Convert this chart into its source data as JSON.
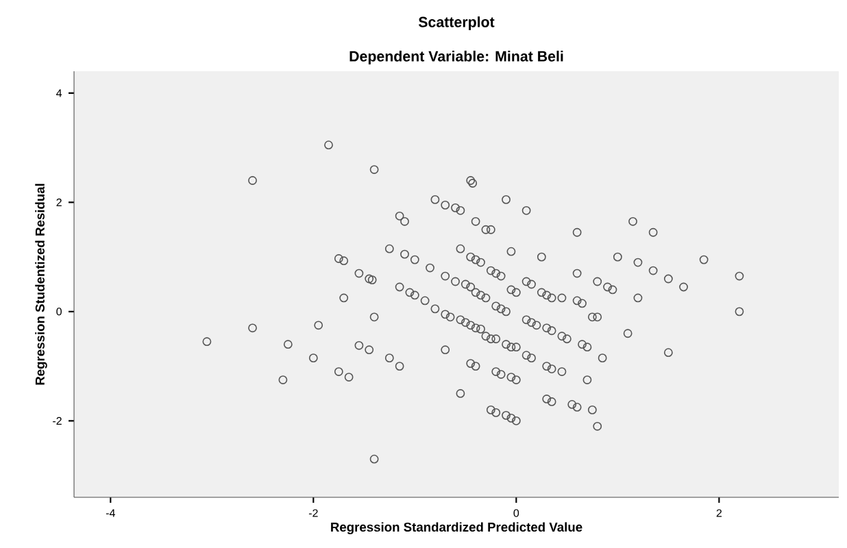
{
  "chart_data": {
    "type": "scatter",
    "title": "Scatterplot",
    "subtitle": "Dependent Variable: Minat Beli",
    "xlabel": "Regression Standardized Predicted Value",
    "ylabel": "Regression Studentized Residual",
    "xlim": [
      -4.36,
      3.18
    ],
    "ylim": [
      -3.4,
      4.4
    ],
    "xticks": [
      -4,
      -2,
      0,
      2
    ],
    "yticks": [
      4,
      2,
      0,
      -2
    ],
    "grid": false,
    "marker": "circle",
    "series": [
      {
        "color": "#555555",
        "x": [
          -3.05,
          -2.6,
          -2.6,
          -2.25,
          -2.3,
          -1.95,
          -2.0,
          -1.85,
          -1.75,
          -1.7,
          -1.75,
          -1.65,
          -1.7,
          -1.55,
          -1.45,
          -1.42,
          -1.55,
          -1.45,
          -1.4,
          -1.4,
          -1.4,
          -1.25,
          -1.25,
          -1.15,
          -1.1,
          -1.15,
          -1.1,
          -1.0,
          -1.05,
          -1.0,
          -1.15,
          -0.9,
          -0.8,
          -0.7,
          -0.85,
          -0.7,
          -0.8,
          -0.7,
          -0.65,
          -0.7,
          -0.6,
          -0.55,
          -0.55,
          -0.6,
          -0.5,
          -0.45,
          -0.55,
          -0.5,
          -0.45,
          -0.4,
          -0.35,
          -0.55,
          -0.45,
          -0.43,
          -0.4,
          -0.45,
          -0.4,
          -0.35,
          -0.4,
          -0.35,
          -0.3,
          -0.45,
          -0.4,
          -0.3,
          -0.25,
          -0.25,
          -0.2,
          -0.15,
          -0.2,
          -0.15,
          -0.1,
          -0.3,
          -0.25,
          -0.2,
          -0.2,
          -0.15,
          -0.25,
          -0.2,
          -0.1,
          -0.05,
          -0.05,
          0.0,
          -0.1,
          -0.05,
          0.0,
          -0.05,
          0.0,
          -0.1,
          -0.05,
          0.0,
          0.1,
          0.1,
          0.15,
          0.1,
          0.15,
          0.2,
          0.1,
          0.15,
          0.25,
          0.25,
          0.3,
          0.35,
          0.3,
          0.35,
          0.3,
          0.35,
          0.3,
          0.35,
          0.45,
          0.45,
          0.5,
          0.45,
          0.55,
          0.6,
          0.6,
          0.6,
          0.6,
          0.65,
          0.65,
          0.7,
          0.7,
          0.75,
          0.8,
          0.75,
          0.8,
          0.8,
          0.85,
          0.9,
          0.95,
          1.0,
          1.1,
          1.15,
          1.2,
          1.2,
          1.35,
          1.35,
          1.5,
          1.5,
          1.65,
          1.85,
          2.2,
          2.2
        ],
        "values": [
          -0.55,
          2.4,
          -0.3,
          -0.6,
          -1.25,
          -0.25,
          -0.85,
          3.05,
          0.97,
          0.93,
          -1.1,
          -1.2,
          0.25,
          0.7,
          0.6,
          0.58,
          -0.62,
          -0.7,
          2.6,
          -0.1,
          -2.7,
          1.15,
          -0.85,
          1.75,
          1.65,
          0.45,
          1.05,
          0.95,
          0.35,
          0.3,
          -1.0,
          0.2,
          2.05,
          1.95,
          0.8,
          0.65,
          0.05,
          -0.05,
          -0.1,
          -0.7,
          1.9,
          1.85,
          1.15,
          0.55,
          0.5,
          0.45,
          -0.15,
          -0.2,
          -0.25,
          -0.3,
          -0.32,
          -1.5,
          2.4,
          2.35,
          1.65,
          1.0,
          0.95,
          0.9,
          0.35,
          0.3,
          0.25,
          -0.95,
          -1.0,
          1.5,
          1.5,
          0.75,
          0.7,
          0.65,
          0.1,
          0.05,
          0.0,
          -0.45,
          -0.5,
          -0.5,
          -1.1,
          -1.15,
          -1.8,
          -1.85,
          2.05,
          1.1,
          0.4,
          0.35,
          -0.6,
          -0.65,
          -0.65,
          -1.2,
          -1.25,
          -1.9,
          -1.95,
          -2.0,
          1.85,
          0.55,
          0.5,
          -0.15,
          -0.2,
          -0.25,
          -0.8,
          -0.85,
          1.0,
          0.35,
          0.3,
          0.25,
          -0.3,
          -0.35,
          -1.0,
          -1.05,
          -1.6,
          -1.65,
          0.25,
          -0.45,
          -0.5,
          -1.1,
          -1.7,
          -1.75,
          1.45,
          0.7,
          0.2,
          0.15,
          -0.6,
          -0.65,
          -1.25,
          -1.8,
          0.55,
          -0.1,
          -0.1,
          -2.1,
          -0.85,
          0.45,
          0.4,
          1.0,
          -0.4,
          1.65,
          0.9,
          0.25,
          1.45,
          0.75,
          0.6,
          -0.75,
          0.45,
          0.95,
          0.65,
          0.0
        ]
      }
    ]
  }
}
